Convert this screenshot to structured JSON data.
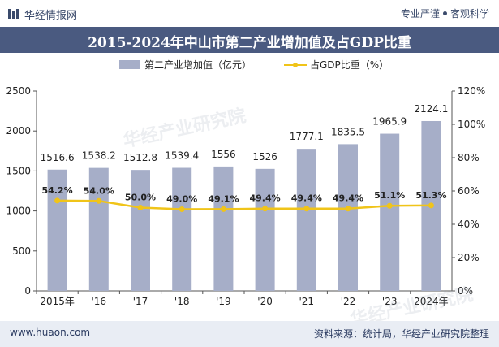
{
  "header": {
    "brand": "华经情报网",
    "slogan_a": "专业严谨",
    "slogan_b": "客观科学"
  },
  "title": "2015-2024年中山市第二产业增加值及占GDP比重",
  "footer": {
    "url": "www.huaon.com",
    "source": "资料来源：统计局，华经产业研究院整理"
  },
  "colors": {
    "bar": "#a6aec8",
    "line": "#f0c419",
    "titlebar": "#4a5a80",
    "footer_bg": "#e9edf4"
  },
  "chart_data": {
    "type": "bar+line",
    "categories": [
      "2015年",
      "'16",
      "'17",
      "'18",
      "'19",
      "'20",
      "'21",
      "'22",
      "'23",
      "2024年"
    ],
    "series": [
      {
        "name": "第二产业增加值（亿元）",
        "type": "bar",
        "axis": "left",
        "values": [
          1516.6,
          1538.2,
          1512.8,
          1539.4,
          1556,
          1526,
          1777.1,
          1835.5,
          1965.9,
          2124.1
        ],
        "labels": [
          "1516.6",
          "1538.2",
          "1512.8",
          "1539.4",
          "1556",
          "1526",
          "1777.1",
          "1835.5",
          "1965.9",
          "2124.1"
        ]
      },
      {
        "name": "占GDP比重（%）",
        "type": "line",
        "axis": "right",
        "values": [
          54.2,
          54.0,
          50.0,
          49.0,
          49.1,
          49.4,
          49.4,
          49.4,
          51.1,
          51.3
        ],
        "labels": [
          "54.2%",
          "54.0%",
          "50.0%",
          "49.0%",
          "49.1%",
          "49.4%",
          "49.4%",
          "49.4%",
          "51.1%",
          "51.3%"
        ]
      }
    ],
    "y_left": {
      "ylim": [
        0,
        2500
      ],
      "ticks": [
        "0",
        "500",
        "1000",
        "1500",
        "2000",
        "2500"
      ]
    },
    "y_right": {
      "ylim": [
        0,
        120
      ],
      "ticks": [
        "0%",
        "20%",
        "40%",
        "60%",
        "80%",
        "100%",
        "120%"
      ]
    },
    "grid": false,
    "legend": "top-center"
  }
}
